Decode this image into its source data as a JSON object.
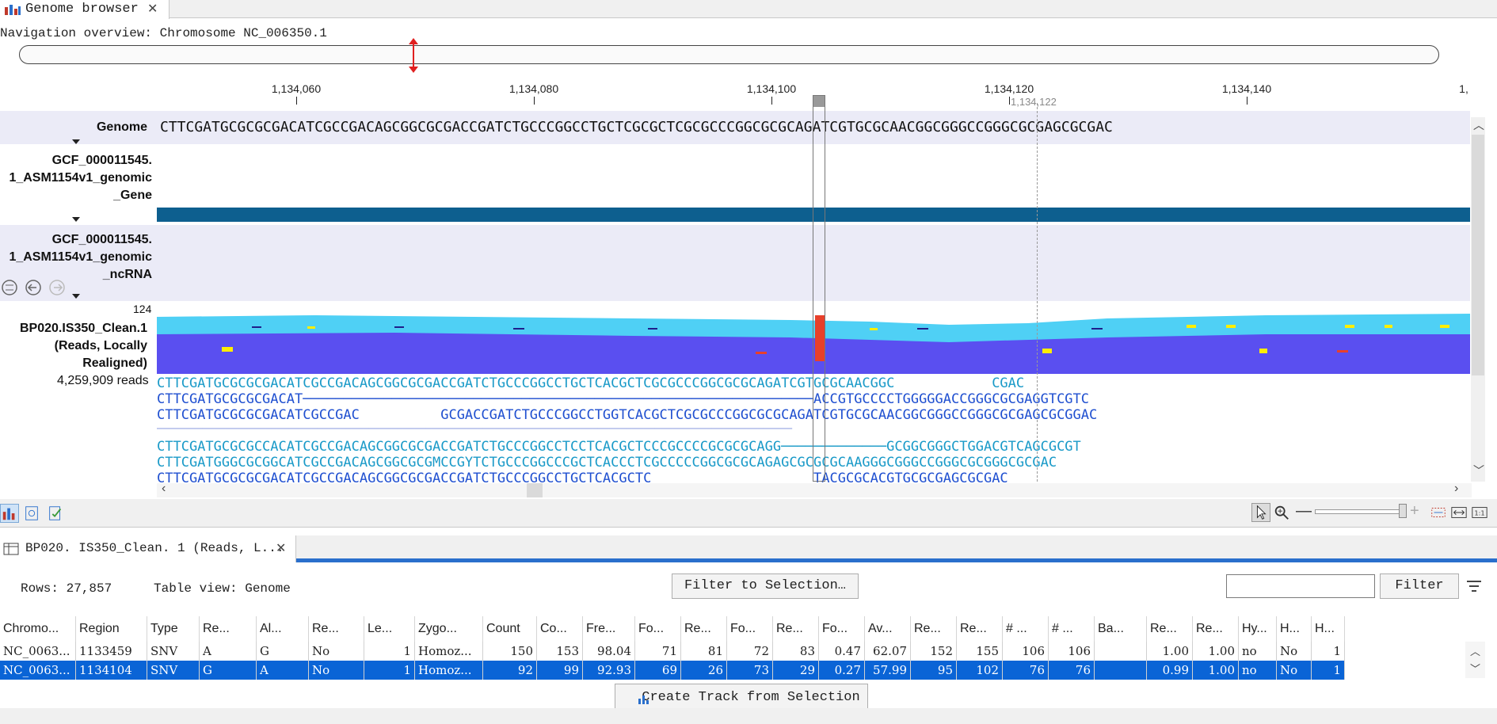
{
  "top_tab": {
    "label": "Genome browser",
    "close": "✕"
  },
  "nav": {
    "label": "Navigation overview: Chromosome NC_006350.1"
  },
  "ruler": {
    "ticks": [
      "1,134,060",
      "1,134,080",
      "1,134,100",
      "1,134,120",
      "1,134,140",
      "1,"
    ],
    "cursor_position": "1,134,122"
  },
  "tracks": {
    "genome": {
      "label": "Genome",
      "sequence": "CTTCGATGCGCGCGACATCGCCGACAGCGGCGCGACCGATCTGCCCGGCCTGCTCGCGCTCGCGCCCGGCGCGCAGATCGTGCGCAACGGCGGGCCGGGCGCGAGCGCGAC"
    },
    "gene": {
      "label": "GCF_000011545.\n1_ASM1154v1_genomic\n_Gene"
    },
    "ncrna": {
      "label": "GCF_000011545.\n1_ASM1154v1_genomic\n_ncRNA"
    },
    "reads": {
      "max_coverage": "124",
      "label": "BP020.IS350_Clean.1\n(Reads, Locally\nRealigned)",
      "read_count": "4,259,909 reads",
      "lines": [
        "CTTCGATGCGCGCGACATCGCCGACAGCGGCGCGACCGATCTGCCCGGCCTGCTCACGCTCGCGCCCGGCGCGCAGATCGTGCGCAACGGC            CGAC",
        "CTTCGATGCGCGCGACAT───────────────────────────────────────────────────────────────ACCGTGCCCCTGGGGGACCGGGCGCGAGGTCGTC",
        "CTTCGATGCGCGCGACATCGCCGAC          GCGACCGATCTGCCCGGCCTGGTCACGCTCGCGCCCGGCGCGCAGATCGTGCGCAACGGCGGGCCGGGCGCGAGCGCGGAC",
        "───────────────────────────────────────────────────────────────────────────────────────────────────────────────",
        "CTTCGATGCGCGCCACATCGCCGACAGCGGCGCGACCGATCTGCCCGGCCTCCTCACGCTCCCGCCCCGCGCGCAGG─────────────GCGGCGGGCTGGACGTCAGCGCGT",
        "CTTCGATGGGCGCGGCATCGCCGACAGCGGCGCGMCCGYTCTGCCCGGCCCGCTCACCCTCGCCCCCGGCGCGCAGAGCGCGCGCAAGGGCGGGCCGGGCGCGGGCGCGAC",
        "CTTCGATGCGCGCGACATCGCCGACAGCGGCGCGACCGATCTGCCCGGCCTGCTCACGCTC                    TACGCGCACGTGCGCGAGCGCGAC"
      ]
    }
  },
  "table_tab": {
    "label": "BP020. IS350_Clean. 1 (Reads, L...",
    "close": "✕"
  },
  "table_toolbar": {
    "rows": "Rows: 27,857",
    "table_view": "Table view: Genome",
    "filter_selection": "Filter to Selection…",
    "search_value": "",
    "filter": "Filter"
  },
  "table": {
    "columns": [
      "Chromo...",
      "Region",
      "Type",
      "Re...",
      "Al...",
      "Re...",
      "Le...",
      "Zygo...",
      "Count",
      "Co...",
      "Fre...",
      "Fo...",
      "Re...",
      "Fo...",
      "Re...",
      "Fo...",
      "Av...",
      "Re...",
      "Re...",
      "# ...",
      "# ...",
      "Ba...",
      "Re...",
      "Re...",
      "Hy...",
      "H...",
      "H..."
    ],
    "rows": [
      [
        "NC_0063...",
        "1133459",
        "SNV",
        "A",
        "G",
        "No",
        "1",
        "Homoz...",
        "150",
        "153",
        "98.04",
        "71",
        "81",
        "72",
        "83",
        "0.47",
        "62.07",
        "152",
        "155",
        "106",
        "106",
        "",
        "1.00",
        "1.00",
        "no",
        "No",
        "1"
      ],
      [
        "NC_0063...",
        "1134104",
        "SNV",
        "G",
        "A",
        "No",
        "1",
        "Homoz...",
        "92",
        "99",
        "92.93",
        "69",
        "26",
        "73",
        "29",
        "0.27",
        "57.99",
        "95",
        "102",
        "76",
        "76",
        "",
        "0.99",
        "1.00",
        "no",
        "No",
        "1"
      ]
    ]
  },
  "create_track": "Create Track from Selection",
  "colors": {
    "accent": "#0a64d6",
    "gene": "#0d5f8f",
    "coverage_light": "#4fd0f5",
    "coverage_dark": "#5a4ff0",
    "snv": "#e8402a"
  }
}
